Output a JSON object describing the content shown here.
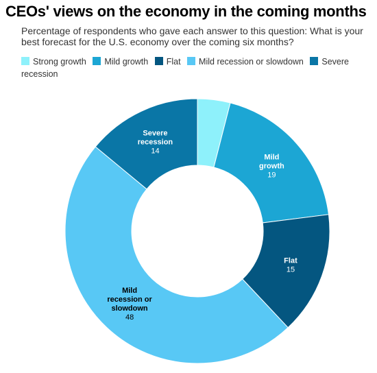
{
  "title": "CEOs' views on the economy in the coming months",
  "subtitle": "Percentage of respondents who gave each answer to this question: What is your best forecast for the U.S. economy over the coming six months?",
  "chart_data": {
    "type": "pie",
    "donut": true,
    "legend_position": "top-left",
    "categories": [
      "Strong growth",
      "Mild growth",
      "Flat",
      "Mild recession or slowdown",
      "Severe recession"
    ],
    "values": [
      4,
      19,
      15,
      48,
      14
    ],
    "colors": [
      "#8ef1fb",
      "#1ca6d4",
      "#045680",
      "#58c8f5",
      "#0a76a6"
    ],
    "label_text_colors": [
      "#000000",
      "#ffffff",
      "#ffffff",
      "#000000",
      "#ffffff"
    ],
    "slice_label_lines": [
      [],
      [
        "Mild",
        "growth"
      ],
      [
        "Flat"
      ],
      [
        "Mild",
        "recession or",
        "slowdown"
      ],
      [
        "Severe",
        "recession"
      ]
    ],
    "show_value_labels": [
      false,
      true,
      true,
      true,
      true
    ]
  }
}
